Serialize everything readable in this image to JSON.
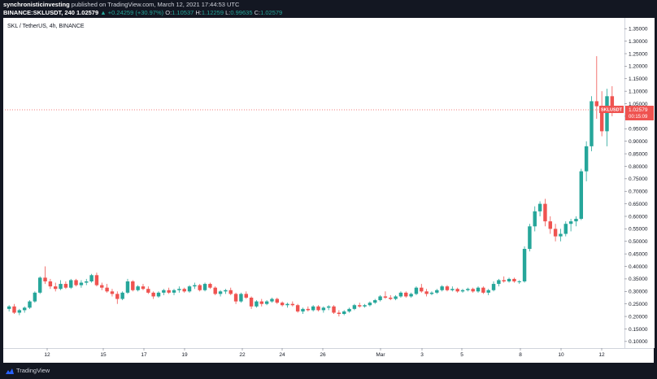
{
  "header": {
    "publisher": "synchronisticinvesting",
    "published_text": "published on TradingView.com, March 12, 2021 17:44:53 UTC",
    "symbol_line": "BINANCE:SKLUSDT, 240",
    "last": "1.02579",
    "change": "▲ +0.24259 (+30.97%)",
    "o_label": "O:",
    "o_value": "1.10537",
    "h_label": "H:",
    "h_value": "1.12259",
    "l_label": "L:",
    "l_value": "0.99635",
    "c_label": "C:",
    "c_value": "1.02579"
  },
  "legend": "SKL / TetherUS, 4h, BINANCE",
  "footer": {
    "brand": "TradingView"
  },
  "colors": {
    "up": "#26a69a",
    "down": "#ef5350",
    "price_line": "#ef5350",
    "background": "#ffffff",
    "frame": "#131722"
  },
  "price_tag": {
    "symbol": "SKLUSDT",
    "price": "1.02579",
    "countdown": "00:15:09"
  },
  "chart_data": {
    "type": "candlestick",
    "title": "SKL / TetherUS, 4h, BINANCE",
    "ylim": [
      0.08,
      1.38
    ],
    "y_ticks": [
      "1.35000",
      "1.30000",
      "1.25000",
      "1.20000",
      "1.15000",
      "1.10000",
      "1.05000",
      "1.00000",
      "0.95000",
      "0.90000",
      "0.85000",
      "0.80000",
      "0.75000",
      "0.70000",
      "0.65000",
      "0.60000",
      "0.55000",
      "0.50000",
      "0.45000",
      "0.40000",
      "0.35000",
      "0.30000",
      "0.25000",
      "0.20000",
      "0.15000",
      "0.10000"
    ],
    "x_ticks": [
      "12",
      "15",
      "17",
      "19",
      "22",
      "24",
      "26",
      "Mar",
      "3",
      "5",
      "8",
      "10",
      "12"
    ],
    "last_price": 1.02579,
    "candles": [
      [
        0.23,
        0.245,
        0.22,
        0.24
      ],
      [
        0.24,
        0.25,
        0.21,
        0.215
      ],
      [
        0.215,
        0.23,
        0.205,
        0.225
      ],
      [
        0.225,
        0.24,
        0.215,
        0.235
      ],
      [
        0.235,
        0.265,
        0.23,
        0.26
      ],
      [
        0.26,
        0.3,
        0.255,
        0.295
      ],
      [
        0.295,
        0.36,
        0.29,
        0.355
      ],
      [
        0.355,
        0.4,
        0.33,
        0.34
      ],
      [
        0.34,
        0.35,
        0.31,
        0.32
      ],
      [
        0.32,
        0.335,
        0.3,
        0.31
      ],
      [
        0.31,
        0.345,
        0.305,
        0.33
      ],
      [
        0.33,
        0.34,
        0.31,
        0.315
      ],
      [
        0.315,
        0.35,
        0.31,
        0.345
      ],
      [
        0.345,
        0.35,
        0.32,
        0.325
      ],
      [
        0.325,
        0.345,
        0.315,
        0.335
      ],
      [
        0.335,
        0.35,
        0.325,
        0.34
      ],
      [
        0.34,
        0.37,
        0.335,
        0.365
      ],
      [
        0.365,
        0.375,
        0.32,
        0.325
      ],
      [
        0.325,
        0.335,
        0.305,
        0.315
      ],
      [
        0.315,
        0.33,
        0.295,
        0.3
      ],
      [
        0.3,
        0.31,
        0.28,
        0.29
      ],
      [
        0.29,
        0.3,
        0.25,
        0.27
      ],
      [
        0.27,
        0.3,
        0.265,
        0.295
      ],
      [
        0.295,
        0.35,
        0.29,
        0.34
      ],
      [
        0.34,
        0.345,
        0.3,
        0.305
      ],
      [
        0.305,
        0.325,
        0.3,
        0.32
      ],
      [
        0.32,
        0.33,
        0.305,
        0.31
      ],
      [
        0.31,
        0.32,
        0.29,
        0.295
      ],
      [
        0.295,
        0.3,
        0.27,
        0.28
      ],
      [
        0.28,
        0.3,
        0.275,
        0.295
      ],
      [
        0.295,
        0.31,
        0.285,
        0.305
      ],
      [
        0.305,
        0.315,
        0.29,
        0.295
      ],
      [
        0.295,
        0.31,
        0.285,
        0.305
      ],
      [
        0.305,
        0.32,
        0.295,
        0.31
      ],
      [
        0.31,
        0.315,
        0.295,
        0.3
      ],
      [
        0.3,
        0.325,
        0.295,
        0.32
      ],
      [
        0.32,
        0.335,
        0.31,
        0.325
      ],
      [
        0.325,
        0.33,
        0.3,
        0.305
      ],
      [
        0.305,
        0.335,
        0.3,
        0.33
      ],
      [
        0.33,
        0.335,
        0.31,
        0.315
      ],
      [
        0.315,
        0.32,
        0.285,
        0.29
      ],
      [
        0.29,
        0.305,
        0.28,
        0.3
      ],
      [
        0.3,
        0.31,
        0.29,
        0.305
      ],
      [
        0.305,
        0.315,
        0.285,
        0.29
      ],
      [
        0.29,
        0.295,
        0.25,
        0.26
      ],
      [
        0.26,
        0.295,
        0.255,
        0.29
      ],
      [
        0.29,
        0.3,
        0.27,
        0.275
      ],
      [
        0.275,
        0.28,
        0.23,
        0.24
      ],
      [
        0.24,
        0.265,
        0.235,
        0.26
      ],
      [
        0.26,
        0.27,
        0.24,
        0.25
      ],
      [
        0.25,
        0.265,
        0.245,
        0.26
      ],
      [
        0.26,
        0.275,
        0.255,
        0.27
      ],
      [
        0.27,
        0.275,
        0.25,
        0.255
      ],
      [
        0.255,
        0.26,
        0.24,
        0.245
      ],
      [
        0.245,
        0.255,
        0.235,
        0.25
      ],
      [
        0.25,
        0.26,
        0.24,
        0.245
      ],
      [
        0.245,
        0.25,
        0.215,
        0.22
      ],
      [
        0.22,
        0.235,
        0.21,
        0.23
      ],
      [
        0.23,
        0.24,
        0.22,
        0.225
      ],
      [
        0.225,
        0.245,
        0.22,
        0.24
      ],
      [
        0.24,
        0.245,
        0.22,
        0.225
      ],
      [
        0.225,
        0.24,
        0.215,
        0.235
      ],
      [
        0.235,
        0.245,
        0.225,
        0.24
      ],
      [
        0.24,
        0.245,
        0.21,
        0.215
      ],
      [
        0.215,
        0.225,
        0.2,
        0.21
      ],
      [
        0.21,
        0.225,
        0.205,
        0.22
      ],
      [
        0.22,
        0.235,
        0.215,
        0.23
      ],
      [
        0.23,
        0.25,
        0.225,
        0.245
      ],
      [
        0.245,
        0.255,
        0.235,
        0.24
      ],
      [
        0.24,
        0.25,
        0.235,
        0.245
      ],
      [
        0.245,
        0.26,
        0.24,
        0.255
      ],
      [
        0.255,
        0.27,
        0.25,
        0.265
      ],
      [
        0.265,
        0.285,
        0.26,
        0.28
      ],
      [
        0.28,
        0.3,
        0.27,
        0.275
      ],
      [
        0.275,
        0.285,
        0.265,
        0.27
      ],
      [
        0.27,
        0.285,
        0.265,
        0.28
      ],
      [
        0.28,
        0.3,
        0.275,
        0.295
      ],
      [
        0.295,
        0.3,
        0.275,
        0.28
      ],
      [
        0.28,
        0.295,
        0.275,
        0.29
      ],
      [
        0.29,
        0.32,
        0.285,
        0.315
      ],
      [
        0.315,
        0.33,
        0.295,
        0.3
      ],
      [
        0.3,
        0.31,
        0.28,
        0.29
      ],
      [
        0.29,
        0.3,
        0.285,
        0.295
      ],
      [
        0.295,
        0.31,
        0.29,
        0.305
      ],
      [
        0.305,
        0.325,
        0.3,
        0.32
      ],
      [
        0.32,
        0.325,
        0.3,
        0.305
      ],
      [
        0.305,
        0.32,
        0.3,
        0.31
      ],
      [
        0.31,
        0.315,
        0.295,
        0.3
      ],
      [
        0.3,
        0.31,
        0.295,
        0.305
      ],
      [
        0.305,
        0.315,
        0.3,
        0.31
      ],
      [
        0.31,
        0.315,
        0.295,
        0.3
      ],
      [
        0.3,
        0.32,
        0.295,
        0.315
      ],
      [
        0.315,
        0.32,
        0.29,
        0.295
      ],
      [
        0.295,
        0.31,
        0.285,
        0.305
      ],
      [
        0.305,
        0.34,
        0.3,
        0.33
      ],
      [
        0.33,
        0.35,
        0.32,
        0.345
      ],
      [
        0.345,
        0.36,
        0.335,
        0.34
      ],
      [
        0.34,
        0.355,
        0.335,
        0.35
      ],
      [
        0.35,
        0.355,
        0.335,
        0.34
      ],
      [
        0.34,
        0.345,
        0.33,
        0.34
      ],
      [
        0.34,
        0.48,
        0.335,
        0.47
      ],
      [
        0.47,
        0.57,
        0.46,
        0.56
      ],
      [
        0.56,
        0.64,
        0.54,
        0.62
      ],
      [
        0.62,
        0.66,
        0.6,
        0.65
      ],
      [
        0.65,
        0.67,
        0.56,
        0.58
      ],
      [
        0.58,
        0.6,
        0.53,
        0.55
      ],
      [
        0.55,
        0.57,
        0.5,
        0.52
      ],
      [
        0.52,
        0.55,
        0.5,
        0.53
      ],
      [
        0.53,
        0.58,
        0.52,
        0.57
      ],
      [
        0.57,
        0.59,
        0.54,
        0.58
      ],
      [
        0.58,
        0.6,
        0.56,
        0.59
      ],
      [
        0.59,
        0.79,
        0.585,
        0.78
      ],
      [
        0.78,
        0.9,
        0.74,
        0.88
      ],
      [
        0.88,
        1.08,
        0.86,
        1.06
      ],
      [
        1.06,
        1.24,
        0.99,
        1.04
      ],
      [
        1.04,
        1.1,
        0.92,
        0.94
      ],
      [
        0.94,
        1.11,
        0.88,
        1.08
      ],
      [
        1.08,
        1.12,
        1.0,
        1.026
      ]
    ]
  }
}
